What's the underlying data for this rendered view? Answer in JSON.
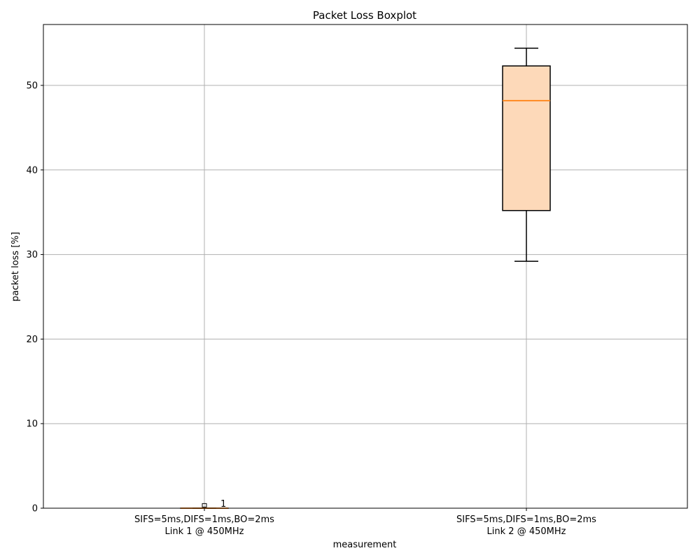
{
  "chart_data": {
    "type": "boxplot",
    "title": "Packet Loss Boxplot",
    "xlabel": "measurement",
    "ylabel": "packet loss [%]",
    "ylim": [
      0,
      57.2
    ],
    "yticks": [
      0,
      10,
      20,
      30,
      40,
      50
    ],
    "grid": true,
    "colors": {
      "box_fill": "#fdd9b9",
      "box_edge": "#000000",
      "median": "#ff7f0e",
      "grid": "#b0b0b0"
    },
    "categories": [
      {
        "label_line1": "SIFS=5ms,DIFS=1ms,BO=2ms",
        "label_line2": "Link 1 @ 450MHz",
        "whisker_low": 0,
        "q1": 0,
        "median": 0,
        "q3": 0,
        "whisker_high": 0,
        "outliers": [
          0.3
        ],
        "annotation": "1"
      },
      {
        "label_line1": "SIFS=5ms,DIFS=1ms,BO=2ms",
        "label_line2": "Link 2 @ 450MHz",
        "whisker_low": 29.2,
        "q1": 35.2,
        "median": 48.2,
        "q3": 52.3,
        "whisker_high": 54.4,
        "outliers": [],
        "annotation": ""
      }
    ]
  }
}
